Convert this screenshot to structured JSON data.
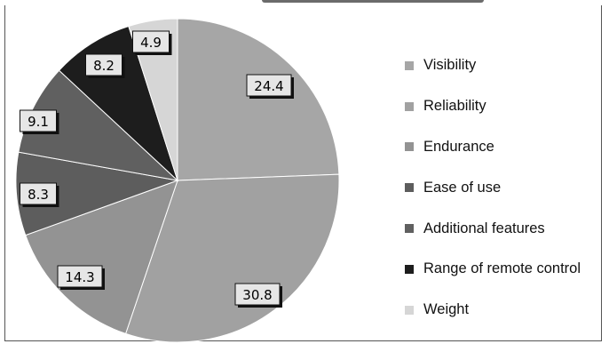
{
  "chart_data": {
    "type": "pie",
    "title": "",
    "slices": [
      {
        "label": "Visibility",
        "value": 24.4,
        "value_label": "24.4",
        "color": "#a6a6a6"
      },
      {
        "label": "Reliability",
        "value": 30.8,
        "value_label": "30.8",
        "color": "#a1a1a1"
      },
      {
        "label": "Endurance",
        "value": 14.3,
        "value_label": "14.3",
        "color": "#939393"
      },
      {
        "label": "Ease of use",
        "value": 8.3,
        "value_label": "8.3",
        "color": "#5d5d5d"
      },
      {
        "label": "Additional features",
        "value": 9.1,
        "value_label": "9.1",
        "color": "#606060"
      },
      {
        "label": "Range of remote control",
        "value": 8.2,
        "value_label": "8.2",
        "color": "#1d1d1d"
      },
      {
        "label": "Weight",
        "value": 4.9,
        "value_label": "4.9",
        "color": "#d6d6d6"
      }
    ],
    "start_angle_deg": 0,
    "direction": "clockwise",
    "legend_position": "right"
  }
}
